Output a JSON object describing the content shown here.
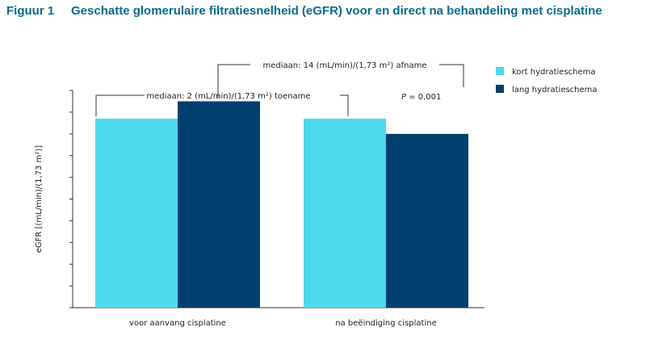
{
  "figure": {
    "label": "Figuur 1",
    "title": "Geschatte glomerulaire filtratiesnelheid (eGFR) voor en direct na behandeling met cisplatine"
  },
  "chart_data": {
    "type": "bar",
    "ylabel": "eGFR [(mL/min)/(1,73 m²)]",
    "xlabel": "",
    "y_tick_labels_shown": false,
    "ylim": [
      0,
      100
    ],
    "categories": [
      "voor aanvang cisplatine",
      "na beëindiging cisplatine"
    ],
    "series": [
      {
        "name": "kort hydratieschema",
        "color": "#4dd9ec",
        "values": [
          87,
          87
        ]
      },
      {
        "name": "lang hydratieschema",
        "color": "#003f6e",
        "values": [
          95,
          80
        ]
      }
    ],
    "legend_position": "top-right",
    "grid": false,
    "annotations": {
      "within_group_1": "mediaan: 2 (mL/min)/(1,73 m²) toename",
      "between_groups": "mediaan: 14 (mL/min)/(1,73 m²) afname",
      "p_value_label": "P",
      "p_value_text": "= 0,001"
    }
  }
}
